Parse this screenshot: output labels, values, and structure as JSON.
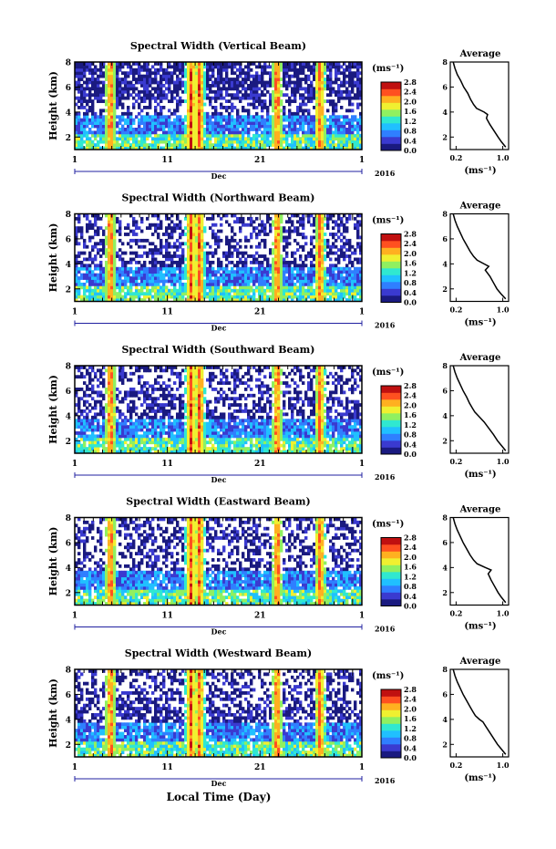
{
  "figure": {
    "x_axis_title": "Local Time (Day)"
  },
  "panels": [
    {
      "title": "Spectral Width (Vertical Beam)",
      "avg_title": "Average"
    },
    {
      "title": "Spectral Width (Northward Beam)",
      "avg_title": "Average"
    },
    {
      "title": "Spectral Width (Southward Beam)",
      "avg_title": "Average"
    },
    {
      "title": "Spectral Width (Eastward Beam)",
      "avg_title": "Average"
    },
    {
      "title": "Spectral Width (Westward Beam)",
      "avg_title": "Average"
    }
  ],
  "chart_data": {
    "type": "heatmap",
    "ylabel": "Height (km)",
    "y_ticks": [
      "2",
      "4",
      "6",
      "8"
    ],
    "ylim": [
      1,
      8
    ],
    "x_ticks": [
      "1",
      "11",
      "21",
      "1"
    ],
    "month_label": "Dec",
    "year_label": "2016",
    "colorbar": {
      "unit_label": "(ms⁻¹)",
      "ticks": [
        "0.0",
        "0.4",
        "0.8",
        "1.2",
        "1.6",
        "2.0",
        "2.4",
        "2.8"
      ],
      "range": [
        0.0,
        2.8
      ],
      "colors": [
        "#1a1a80",
        "#3a3ad0",
        "#2f7fff",
        "#20c0ff",
        "#30e8d0",
        "#90f060",
        "#f0f030",
        "#ffb020",
        "#ff5020",
        "#c01010"
      ]
    },
    "average_profile": {
      "xlabel": "(ms⁻¹)",
      "x_ticks": [
        "0.2",
        "1.0"
      ],
      "xlim": [
        0.1,
        1.1
      ],
      "y_ticks": [
        "2",
        "4",
        "6",
        "8"
      ],
      "heights": [
        1.2,
        1.6,
        2.0,
        2.5,
        3.0,
        3.5,
        3.8,
        4.0,
        4.3,
        4.6,
        5.0,
        5.5,
        6.0,
        6.5,
        7.0,
        7.5,
        8.0
      ],
      "series": [
        {
          "values": [
            1.05,
            0.98,
            0.92,
            0.85,
            0.78,
            0.72,
            0.74,
            0.68,
            0.55,
            0.5,
            0.45,
            0.4,
            0.33,
            0.28,
            0.22,
            0.18,
            0.15
          ]
        },
        {
          "values": [
            1.05,
            0.97,
            0.9,
            0.84,
            0.78,
            0.7,
            0.76,
            0.68,
            0.56,
            0.5,
            0.44,
            0.38,
            0.32,
            0.27,
            0.22,
            0.18,
            0.15
          ]
        },
        {
          "values": [
            1.05,
            0.98,
            0.91,
            0.84,
            0.76,
            0.68,
            0.62,
            0.58,
            0.52,
            0.48,
            0.43,
            0.38,
            0.32,
            0.27,
            0.22,
            0.18,
            0.15
          ]
        },
        {
          "values": [
            1.05,
            0.98,
            0.92,
            0.86,
            0.8,
            0.75,
            0.8,
            0.7,
            0.56,
            0.5,
            0.44,
            0.38,
            0.32,
            0.27,
            0.22,
            0.18,
            0.15
          ]
        },
        {
          "values": [
            1.05,
            0.98,
            0.91,
            0.84,
            0.77,
            0.7,
            0.66,
            0.6,
            0.53,
            0.49,
            0.44,
            0.38,
            0.32,
            0.27,
            0.22,
            0.18,
            0.15
          ]
        }
      ]
    }
  }
}
